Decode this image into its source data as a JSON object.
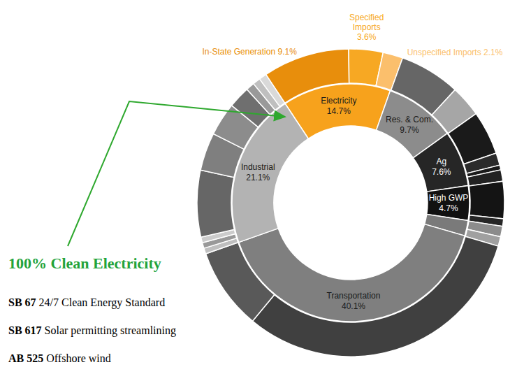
{
  "chart_data": [
    {
      "type": "donut",
      "categories": [
        "Electricity",
        "Res. & Com.",
        "Ag",
        "High GWP",
        null,
        "Transportation",
        "Industrial"
      ],
      "values": [
        14.7,
        9.7,
        7.6,
        4.7,
        2.1,
        40.1,
        21.1
      ],
      "value_labels": [
        "14.7%",
        "9.7%",
        "7.6%",
        "4.7%",
        null,
        "40.1%",
        "21.1%"
      ],
      "colors": [
        "#f7a21c",
        "#8c8c8c",
        "#262626",
        "#111111",
        "#7a7a7a",
        "#7f7f7f",
        "#b3b3b3"
      ],
      "data_labels": true
    },
    {
      "type": "donut",
      "categories": [
        "In-State Generation",
        "Specified Imports",
        "Unspecified Imports",
        null,
        null,
        null,
        null,
        null,
        null,
        null,
        null,
        null,
        null,
        null,
        null,
        null,
        null,
        null,
        null,
        null,
        null,
        null,
        null,
        null,
        null
      ],
      "values": [
        9.1,
        3.6,
        2.1,
        6.4,
        3.3,
        4.6,
        1.3,
        0.5,
        1.2,
        3.9,
        0.8,
        1.1,
        1.0,
        31.5,
        8.6,
        0.6,
        0.6,
        0.6,
        7.0,
        4.0,
        3.5,
        2.3,
        0.9,
        0.8,
        0.8
      ],
      "value_labels": [
        "9.1%",
        "3.6%",
        "2.1%",
        null,
        null,
        null,
        null,
        null,
        null,
        null,
        null,
        null,
        null,
        null,
        null,
        null,
        null,
        null,
        null,
        null,
        null,
        null,
        null,
        null,
        null
      ],
      "colors": [
        "#e88e0c",
        "#f7a823",
        "#fbbf6c",
        "#666666",
        "#a6a6a6",
        "#1a1a1a",
        "#2b2b2b",
        "#1a1a1a",
        "#222222",
        "#141414",
        "#262626",
        "#8c8c8c",
        "#a0a0a0",
        "#404040",
        "#595959",
        "#bfbfbf",
        "#999999",
        "#cccccc",
        "#666666",
        "#7f7f7f",
        "#8c8c8c",
        "#6f6f6f",
        "#999999",
        "#bfbfbf",
        "#d9d9d9"
      ],
      "data_labels": true
    }
  ],
  "annotation": {
    "title": "100% Clean Electricity",
    "bills": [
      {
        "id": "SB 67",
        "text": "24/7 Clean Energy Standard"
      },
      {
        "id": "SB 617",
        "text": "Solar permitting streamlining"
      },
      {
        "id": "AB 525",
        "text": "Offshore wind"
      }
    ]
  }
}
